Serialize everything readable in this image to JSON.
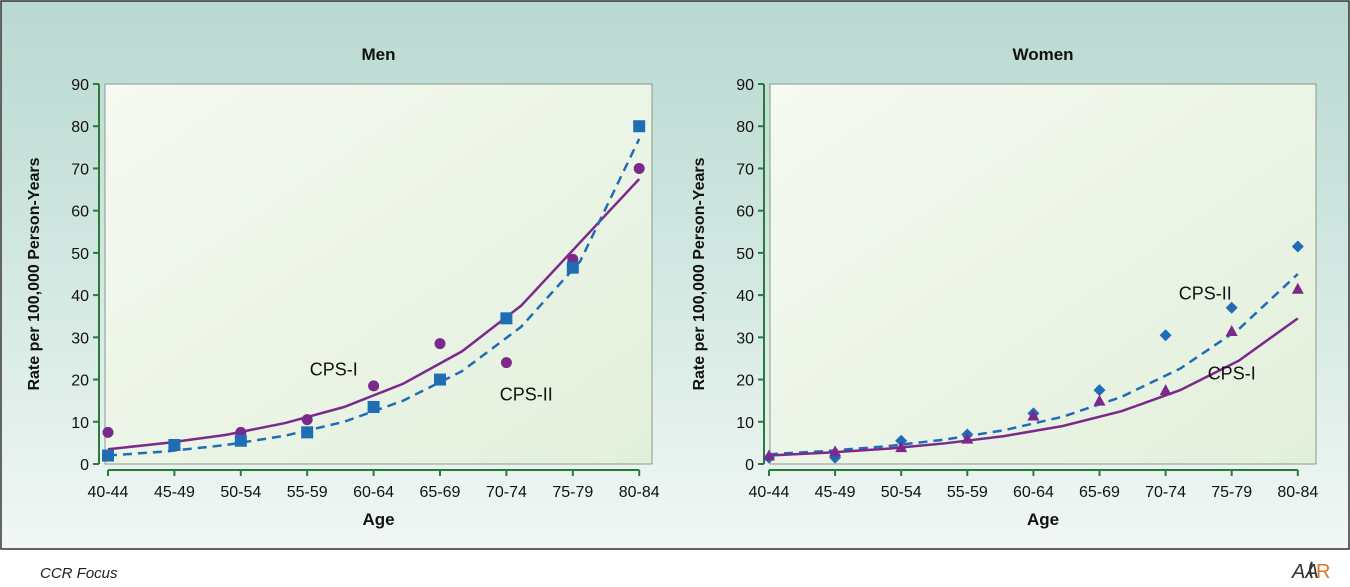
{
  "footer": {
    "journal": "CCR Focus",
    "logo_text": "AACR"
  },
  "colors": {
    "cps1": "#7b2a8c",
    "cps2": "#1f6db5",
    "plot_bg": "#eaf3e6",
    "panel_bg": "#c9e0da"
  },
  "chart_data": [
    {
      "type": "scatter",
      "title": "Men",
      "xlabel": "Age",
      "ylabel": "Rate per 100,000 Person-Years",
      "ylim": [
        0,
        90
      ],
      "yticks": [
        0,
        10,
        20,
        30,
        40,
        50,
        60,
        70,
        80,
        90
      ],
      "categories": [
        "40-44",
        "45-49",
        "50-54",
        "55-59",
        "60-64",
        "65-69",
        "70-74",
        "75-79",
        "80-84"
      ],
      "series": [
        {
          "name": "CPS-I",
          "marker": "circle",
          "line": "solid",
          "color": "#7b2a8c",
          "values": [
            7.5,
            4.5,
            7.5,
            10.5,
            18.5,
            28.5,
            24,
            48.5,
            70
          ],
          "fit": [
            3.5,
            5.0,
            6.9,
            9.7,
            13.5,
            19.0,
            26.7,
            37.5,
            52.5,
            67.5
          ]
        },
        {
          "name": "CPS-II",
          "marker": "square",
          "line": "dashed",
          "color": "#1f6db5",
          "values": [
            2,
            4.5,
            5.5,
            7.5,
            13.5,
            20,
            34.5,
            46.5,
            80
          ],
          "fit": [
            2.0,
            3.0,
            4.5,
            6.7,
            10.0,
            15.0,
            22.0,
            32.5,
            48.0,
            77.0
          ]
        }
      ],
      "annotations": [
        {
          "text": "CPS-I",
          "series": 0,
          "x": 3.4,
          "y": 21
        },
        {
          "text": "CPS-II",
          "series": 1,
          "x": 6.3,
          "y": 15
        }
      ]
    },
    {
      "type": "scatter",
      "title": "Women",
      "xlabel": "Age",
      "ylabel": "Rate per 100,000 Person-Years",
      "ylim": [
        0,
        90
      ],
      "yticks": [
        0,
        10,
        20,
        30,
        40,
        50,
        60,
        70,
        80,
        90
      ],
      "categories": [
        "40-44",
        "45-49",
        "50-54",
        "55-59",
        "60-64",
        "65-69",
        "70-74",
        "75-79",
        "80-84"
      ],
      "series": [
        {
          "name": "CPS-II",
          "marker": "diamond",
          "line": "dashed",
          "color": "#1f6db5",
          "values": [
            1.5,
            1.5,
            5.5,
            7,
            12,
            17.5,
            30.5,
            37,
            51.5
          ],
          "fit": [
            2.3,
            3.1,
            4.2,
            5.8,
            8.0,
            11.2,
            15.9,
            22.6,
            32.0,
            45.0
          ]
        },
        {
          "name": "CPS-I",
          "marker": "triangle",
          "line": "solid",
          "color": "#7b2a8c",
          "values": [
            2,
            3,
            4,
            6,
            11.5,
            15,
            17.5,
            31.5,
            41.5
          ],
          "fit": [
            2.0,
            2.7,
            3.6,
            4.9,
            6.6,
            9.0,
            12.5,
            17.5,
            24.5,
            34.5
          ]
        }
      ],
      "annotations": [
        {
          "text": "CPS-II",
          "series": 0,
          "x": 6.6,
          "y": 39
        },
        {
          "text": "CPS-I",
          "series": 1,
          "x": 7.0,
          "y": 20
        }
      ]
    }
  ]
}
